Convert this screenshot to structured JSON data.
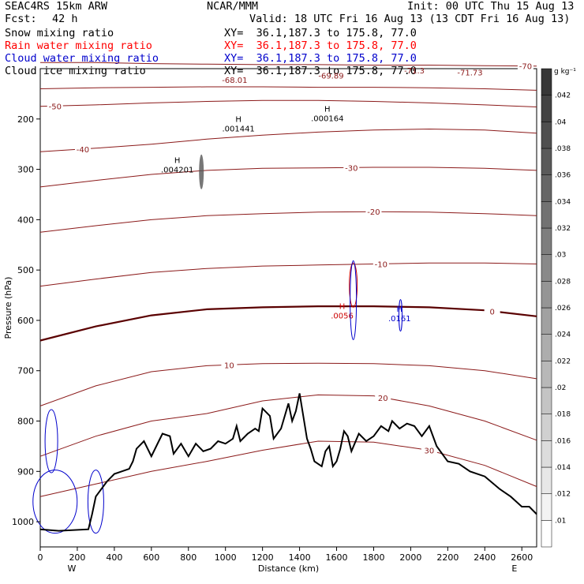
{
  "header": {
    "model": "SEAC4RS 15km ARW",
    "center": "NCAR/MMM",
    "init": "Init: 00 UTC Thu 15 Aug 13",
    "fcst_label": "Fcst:",
    "fcst_value": "42 h",
    "valid": "Valid: 18 UTC Fri 16 Aug 13 (13 CDT Fri 16 Aug 13)",
    "fields": [
      {
        "name": "Snow mixing ratio",
        "xy": "XY=  36.1,187.3 to 175.8, 77.0",
        "color": "#000000"
      },
      {
        "name": "Rain water mixing ratio",
        "xy": "XY=  36.1,187.3 to 175.8, 77.0",
        "color": "#ff0000"
      },
      {
        "name": "Cloud water mixing ratio",
        "xy": "XY=  36.1,187.3 to 175.8, 77.0",
        "color": "#0000cc"
      },
      {
        "name": "Cloud ice mixing ratio",
        "xy": "XY=  36.1,187.3 to 175.8, 77.0",
        "color": "#000000"
      }
    ]
  },
  "chart_data": {
    "type": "cross-section",
    "xlabel": "Distance (km)",
    "ylabel": "Pressure (hPa)",
    "xlim": [
      0,
      2680
    ],
    "ylim": [
      1050,
      100
    ],
    "x_ticks": [
      0,
      200,
      400,
      600,
      800,
      1000,
      1200,
      1400,
      1600,
      1800,
      2000,
      2200,
      2400,
      2600
    ],
    "y_ticks": [
      200,
      300,
      400,
      500,
      600,
      700,
      800,
      900,
      1000
    ],
    "endpoints": {
      "left": "W",
      "right": "E"
    },
    "colorbar": {
      "unit": "g kg⁻¹",
      "ticks": [
        ".01",
        ".012",
        ".014",
        ".016",
        ".018",
        ".02",
        ".022",
        ".024",
        ".026",
        ".028",
        ".03",
        ".032",
        ".034",
        ".036",
        ".038",
        ".04",
        ".042"
      ]
    },
    "temperature_contours": [
      {
        "value": -70,
        "p": [
          88,
          88,
          90,
          91,
          92,
          92,
          93,
          93,
          94,
          95
        ],
        "label": "-70",
        "lx": 2620
      },
      {
        "value": -60,
        "p": [
          140,
          138,
          137,
          136,
          136,
          137,
          137,
          138,
          140,
          143
        ],
        "label": "",
        "lx": 0
      },
      {
        "value": -50,
        "p": [
          175,
          172,
          168,
          165,
          163,
          163,
          165,
          168,
          172,
          176
        ],
        "label": "-50",
        "lx": 80
      },
      {
        "value": -40,
        "p": [
          265,
          258,
          250,
          240,
          232,
          226,
          222,
          220,
          222,
          228
        ],
        "label": "-40",
        "lx": 230
      },
      {
        "value": -30,
        "p": [
          335,
          322,
          310,
          302,
          298,
          297,
          296,
          296,
          298,
          302
        ],
        "label": "-30",
        "lx": 1680
      },
      {
        "value": -20,
        "p": [
          425,
          412,
          400,
          392,
          388,
          385,
          384,
          385,
          388,
          392
        ],
        "label": "-20",
        "lx": 1800
      },
      {
        "value": -10,
        "p": [
          532,
          518,
          505,
          497,
          492,
          490,
          488,
          486,
          486,
          488
        ],
        "label": "-10",
        "lx": 1840
      },
      {
        "value": 0,
        "p": [
          640,
          612,
          590,
          578,
          574,
          572,
          572,
          574,
          580,
          592
        ],
        "label": "0",
        "lx": 2440
      },
      {
        "value": 10,
        "p": [
          770,
          730,
          702,
          690,
          686,
          685,
          686,
          690,
          700,
          716
        ],
        "label": "10",
        "lx": 1020
      },
      {
        "value": 20,
        "p": [
          870,
          830,
          800,
          785,
          760,
          748,
          750,
          770,
          800,
          838
        ],
        "label": "20",
        "lx": 1850
      },
      {
        "value": 30,
        "p": [
          950,
          925,
          900,
          880,
          858,
          840,
          842,
          858,
          888,
          930
        ],
        "label": "30",
        "lx": 2100
      }
    ],
    "contour_x": [
      0,
      300,
      600,
      900,
      1200,
      1500,
      1800,
      2100,
      2400,
      2680
    ],
    "inline_values": [
      {
        "text": "-68.01",
        "x": 1050,
        "p": 122
      },
      {
        "text": "-69.89",
        "x": 1570,
        "p": 113
      },
      {
        "text": "-71.3",
        "x": 2020,
        "p": 103
      },
      {
        "text": "-71.73",
        "x": 2320,
        "p": 107
      }
    ],
    "high_labels": [
      {
        "h": "H",
        "value": ".001441",
        "x": 1070,
        "p": 218
      },
      {
        "h": "H",
        "value": ".000164",
        "x": 1550,
        "p": 198
      },
      {
        "h": "H",
        "value": ".004201",
        "x": 740,
        "p": 300
      },
      {
        "h": "H",
        "value": ".0056",
        "x": 1630,
        "p": 590
      },
      {
        "h": "H",
        "value": ".0161",
        "x": 1940,
        "p": 595
      }
    ],
    "terrain": {
      "x": [
        0,
        100,
        260,
        280,
        300,
        320,
        360,
        400,
        440,
        480,
        500,
        520,
        560,
        600,
        640,
        660,
        700,
        720,
        760,
        800,
        840,
        880,
        920,
        960,
        1000,
        1040,
        1060,
        1080,
        1120,
        1160,
        1180,
        1200,
        1240,
        1260,
        1300,
        1320,
        1340,
        1360,
        1380,
        1400,
        1420,
        1440,
        1460,
        1480,
        1520,
        1540,
        1560,
        1580,
        1600,
        1620,
        1640,
        1660,
        1680,
        1720,
        1760,
        1800,
        1840,
        1880,
        1900,
        1940,
        1980,
        2020,
        2060,
        2100,
        2140,
        2180,
        2200,
        2260,
        2320,
        2400,
        2480,
        2540,
        2600,
        2640,
        2680
      ],
      "p": [
        1015,
        1018,
        1015,
        985,
        950,
        940,
        920,
        905,
        900,
        895,
        880,
        855,
        840,
        870,
        840,
        825,
        830,
        865,
        845,
        870,
        845,
        860,
        855,
        840,
        845,
        835,
        810,
        840,
        825,
        815,
        820,
        775,
        790,
        835,
        815,
        790,
        765,
        800,
        780,
        745,
        790,
        835,
        855,
        880,
        890,
        860,
        850,
        890,
        880,
        855,
        820,
        830,
        860,
        825,
        840,
        830,
        810,
        820,
        800,
        815,
        805,
        810,
        830,
        810,
        850,
        870,
        880,
        885,
        900,
        910,
        935,
        950,
        970,
        970,
        985
      ]
    }
  }
}
